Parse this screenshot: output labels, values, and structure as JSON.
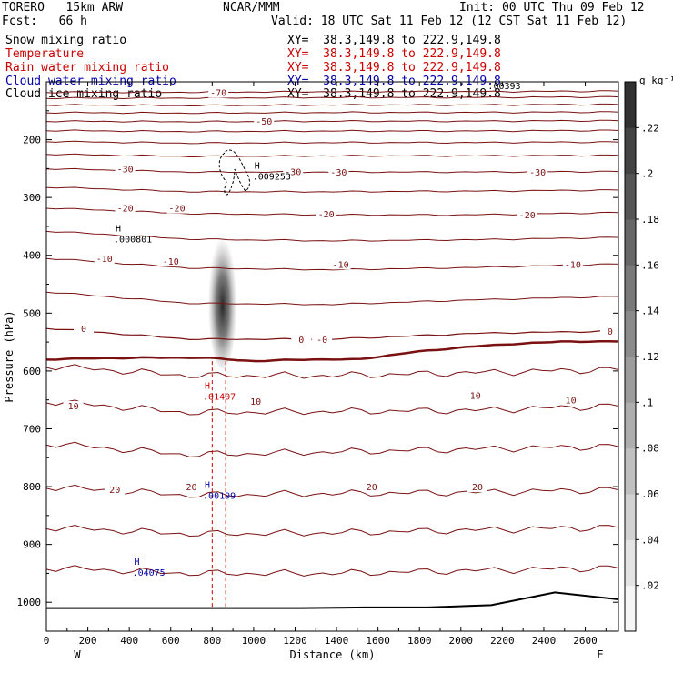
{
  "header": {
    "model": "TORERO   15km ARW",
    "center": "NCAR/MMM",
    "init": "Init: 00 UTC Thu 09 Feb 12",
    "fcst": "Fcst:   66 h",
    "valid": "Valid: 18 UTC Sat 11 Feb 12 (12 CST Sat 11 Feb 12)",
    "fields": [
      {
        "name": "Snow mixing ratio",
        "xy": "XY=  38.3,149.8 to 222.9,149.8",
        "color": "#000000"
      },
      {
        "name": "Temperature",
        "xy": "XY=  38.3,149.8 to 222.9,149.8",
        "color": "#cc0000"
      },
      {
        "name": "Rain water mixing ratio",
        "xy": "XY=  38.3,149.8 to 222.9,149.8",
        "color": "#cc0000"
      },
      {
        "name": "Cloud water mixing ratio",
        "xy": "XY=  38.3,149.8 to 222.9,149.8",
        "color": "#0000aa"
      },
      {
        "name": "Cloud ice mixing ratio",
        "xy": "XY=  38.3,149.8 to 222.9,149.8",
        "color": "#000000"
      }
    ]
  },
  "chart_data": {
    "type": "cross-section",
    "xlabel": "Distance (km)",
    "ylabel": "Pressure (hPa)",
    "xlim": [
      0,
      2760
    ],
    "ylim": [
      1050,
      100
    ],
    "yscale": "linear",
    "x_ticks": [
      0,
      200,
      400,
      600,
      800,
      1000,
      1200,
      1400,
      1600,
      1800,
      2000,
      2200,
      2400,
      2600
    ],
    "y_ticks": [
      200,
      300,
      400,
      500,
      600,
      700,
      800,
      900,
      1000
    ],
    "x_end_labels": {
      "left": "W",
      "right": "E"
    },
    "colorbar": {
      "units": "g kg⁻¹",
      "ticks": [
        ".02",
        ".04",
        ".06",
        ".08",
        ".1",
        ".12",
        ".14",
        ".16",
        ".18",
        ".2",
        ".22"
      ],
      "min": 0,
      "max": 0.24
    },
    "temperature_contours": {
      "interval_c": 5,
      "color": "#7a1010",
      "label_color": "#7a1010",
      "freezing_level_bold": true,
      "levels": [
        {
          "value": -70,
          "p": [
            118,
            118,
            117,
            117,
            116
          ]
        },
        {
          "value": -65,
          "p": [
            128,
            128,
            127,
            127,
            126
          ]
        },
        {
          "value": -60,
          "p": [
            140,
            141,
            140,
            140,
            139
          ]
        },
        {
          "value": -55,
          "p": [
            153,
            154,
            153,
            153,
            152
          ]
        },
        {
          "value": -50,
          "p": [
            168,
            169,
            168,
            168,
            167
          ]
        },
        {
          "value": -45,
          "p": [
            184,
            186,
            185,
            185,
            184
          ]
        },
        {
          "value": -40,
          "p": [
            203,
            206,
            205,
            205,
            204
          ]
        },
        {
          "value": -35,
          "p": [
            225,
            229,
            228,
            228,
            227
          ]
        },
        {
          "value": -30,
          "p": [
            250,
            256,
            256,
            256,
            255
          ]
        },
        {
          "value": -25,
          "p": [
            282,
            290,
            290,
            289,
            287
          ]
        },
        {
          "value": -20,
          "p": [
            318,
            328,
            330,
            330,
            326
          ]
        },
        {
          "value": -15,
          "p": [
            358,
            372,
            375,
            373,
            369
          ]
        },
        {
          "value": -10,
          "p": [
            405,
            422,
            425,
            421,
            415
          ]
        },
        {
          "value": -5,
          "p": [
            463,
            483,
            485,
            477,
            471
          ]
        },
        {
          "value": 0,
          "p": [
            526,
            545,
            545,
            535,
            531
          ]
        },
        {
          "value": 5,
          "p": [
            591,
            608,
            608,
            603,
            597
          ]
        },
        {
          "value": 10,
          "p": [
            652,
            672,
            670,
            668,
            660
          ]
        },
        {
          "value": 15,
          "p": [
            725,
            745,
            740,
            735,
            730
          ]
        },
        {
          "value": 20,
          "p": [
            800,
            815,
            812,
            810,
            805
          ]
        },
        {
          "value": 25,
          "p": [
            870,
            882,
            880,
            875,
            870
          ]
        },
        {
          "value": 30,
          "p": [
            940,
            950,
            950,
            945,
            940
          ]
        }
      ],
      "labels": [
        {
          "text": "-70",
          "x": 830,
          "p": 118
        },
        {
          "text": "-50",
          "x": 1050,
          "p": 168
        },
        {
          "text": "-30",
          "x": 380,
          "p": 250
        },
        {
          "text": "-30",
          "x": 1190,
          "p": 255
        },
        {
          "text": "-30",
          "x": 1410,
          "p": 256
        },
        {
          "text": "-30",
          "x": 2370,
          "p": 256
        },
        {
          "text": "-20",
          "x": 380,
          "p": 318
        },
        {
          "text": "-20",
          "x": 630,
          "p": 318
        },
        {
          "text": "-20",
          "x": 1350,
          "p": 328
        },
        {
          "text": "-20",
          "x": 2320,
          "p": 330
        },
        {
          "text": "-10",
          "x": 280,
          "p": 405
        },
        {
          "text": "-10",
          "x": 600,
          "p": 410
        },
        {
          "text": "-10",
          "x": 1420,
          "p": 415
        },
        {
          "text": "-10",
          "x": 2540,
          "p": 415
        },
        {
          "text": "0",
          "x": 180,
          "p": 526
        },
        {
          "text": "0",
          "x": 1230,
          "p": 545
        },
        {
          "text": "-0",
          "x": 1330,
          "p": 545
        },
        {
          "text": "0",
          "x": 2720,
          "p": 531
        },
        {
          "text": "10",
          "x": 130,
          "p": 660
        },
        {
          "text": "10",
          "x": 1010,
          "p": 652
        },
        {
          "text": "10",
          "x": 2070,
          "p": 642
        },
        {
          "text": "10",
          "x": 2530,
          "p": 650
        },
        {
          "text": "20",
          "x": 330,
          "p": 805
        },
        {
          "text": "20",
          "x": 700,
          "p": 800
        },
        {
          "text": "20",
          "x": 1570,
          "p": 800
        },
        {
          "text": "20",
          "x": 2080,
          "p": 800
        }
      ]
    },
    "freezing_level": {
      "p": [
        580,
        578,
        577,
        577,
        583,
        580,
        580,
        568,
        559,
        553,
        549,
        549
      ]
    },
    "surface_pressure": {
      "p": [
        1010,
        1010,
        1010,
        1010,
        1010,
        1009,
        1009,
        1005,
        983,
        995
      ]
    },
    "snow_max": [
      {
        "label": ".009253",
        "x": 1030,
        "p": 260
      }
    ],
    "snow_max_second": [
      {
        "label": ".000801",
        "x": 360,
        "p": 368
      }
    ],
    "rain_max": [
      {
        "label": ".01407",
        "x": 790,
        "p": 640
      }
    ],
    "cloud_water_max": [
      {
        "label": ".00199",
        "x": 790,
        "p": 812
      },
      {
        "label": ".04075",
        "x": 450,
        "p": 945
      }
    ],
    "cloud_ice_max": [
      {
        "label": ".00393",
        "x": 2130,
        "p": 95
      }
    ],
    "snow_shading": {
      "x_center": 850,
      "p_top": 340,
      "p_bottom": 580,
      "peak_p": 470,
      "peak_value": 0.2
    }
  }
}
